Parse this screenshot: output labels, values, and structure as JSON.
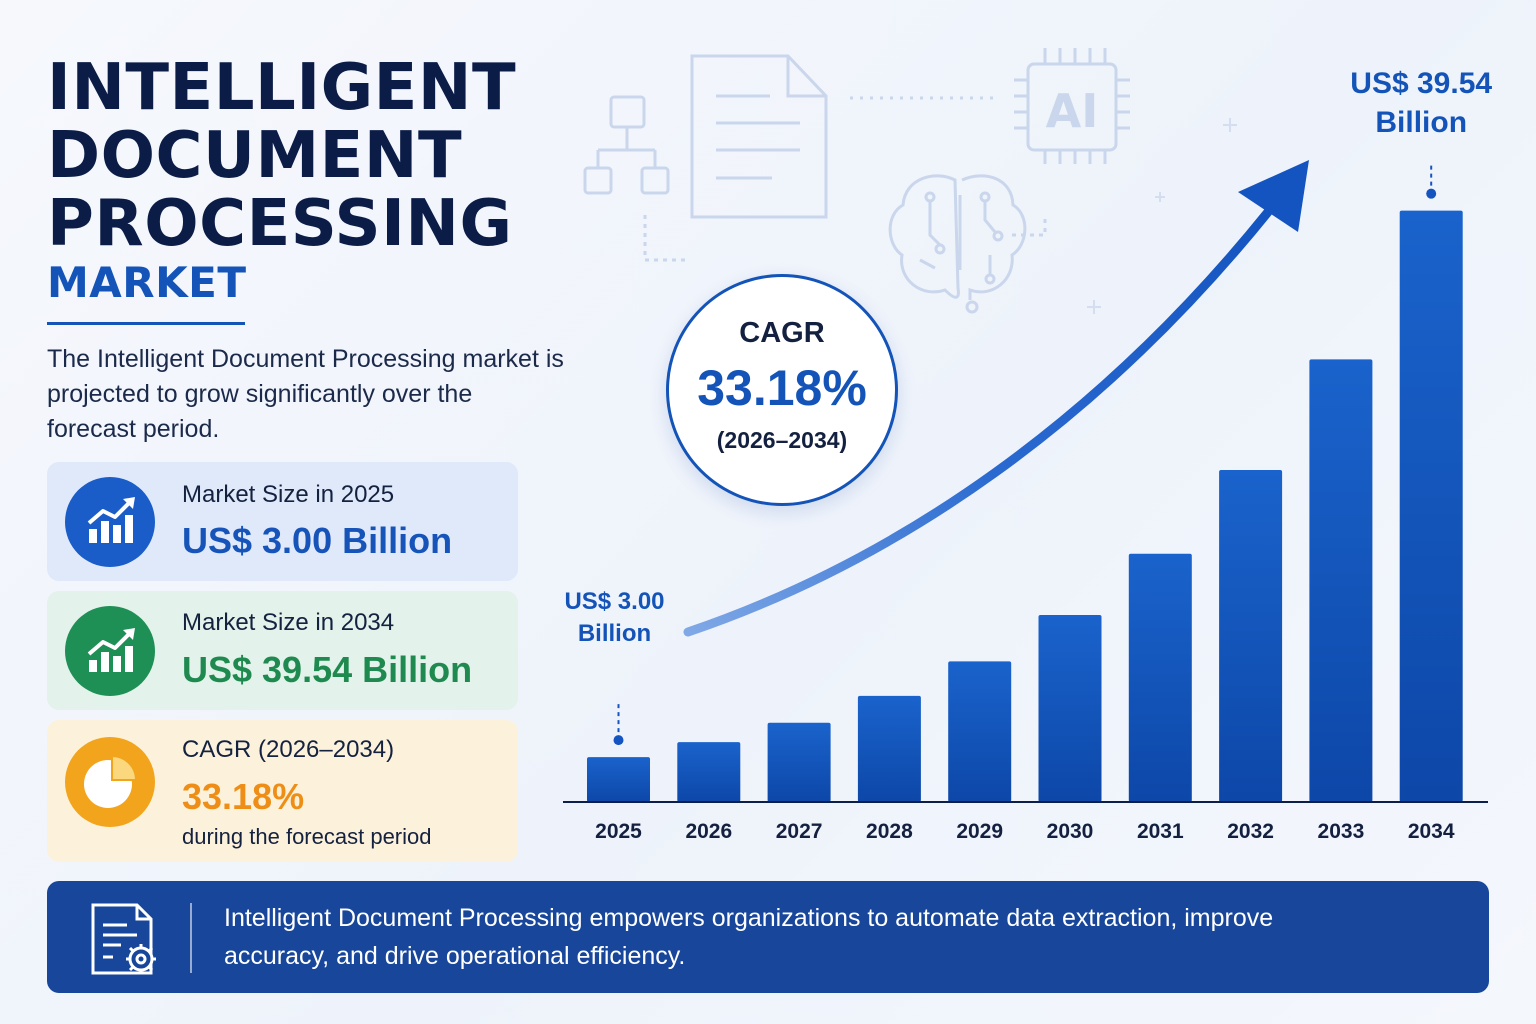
{
  "title": {
    "line1": "INTELLIGENT",
    "line2": "DOCUMENT",
    "line3": "PROCESSING",
    "subtitle": "MARKET"
  },
  "intro": "The Intelligent Document Processing market is projected to grow significantly over the forecast period.",
  "cards": [
    {
      "label": "Market Size in 2025",
      "value": "US$ 3.00 Billion",
      "icon": "growth-chart-icon",
      "color": "#1a5cc8"
    },
    {
      "label": "Market Size in 2034",
      "value": "US$ 39.54 Billion",
      "icon": "growth-chart-icon",
      "color": "#1e8f55"
    },
    {
      "label": "CAGR (2026–2034)",
      "value": "33.18%",
      "note": "during the forecast period",
      "icon": "pie-chart-icon",
      "color": "#f2a51c"
    }
  ],
  "cagr_badge": {
    "label": "CAGR",
    "value": "33.18%",
    "period": "(2026–2034)"
  },
  "background_icons": [
    "flowchart-icon",
    "document-icon",
    "ai-chip-icon",
    "brain-circuit-icon"
  ],
  "chart_data": {
    "type": "bar",
    "categories": [
      "2025",
      "2026",
      "2027",
      "2028",
      "2029",
      "2030",
      "2031",
      "2032",
      "2033",
      "2034"
    ],
    "values": [
      3.0,
      4.0,
      5.3,
      7.1,
      9.4,
      12.5,
      16.6,
      22.2,
      29.6,
      39.54
    ],
    "ylim": [
      0,
      44.8
    ],
    "bar_color": "#1458c0",
    "start_annotation": {
      "line1": "US$ 3.00",
      "line2": "Billion"
    },
    "end_annotation": {
      "line1": "US$ 39.54",
      "line2": "Billion"
    },
    "trend_arrow": true,
    "grid": false
  },
  "banner": {
    "text": "Intelligent Document Processing empowers organizations to automate data extraction, improve accuracy, and drive operational efficiency.",
    "icon": "document-settings-icon"
  }
}
